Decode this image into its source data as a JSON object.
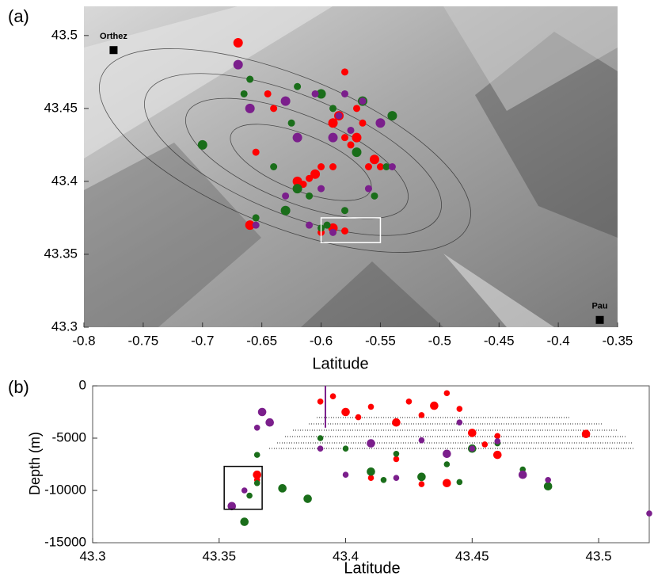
{
  "chart_data": [
    {
      "type": "scatter",
      "label": "(a)",
      "xlabel": "Latitude",
      "xlim": [
        -0.8,
        -0.35
      ],
      "ylim": [
        43.3,
        43.52
      ],
      "xticks": [
        -0.8,
        -0.75,
        -0.7,
        -0.65,
        -0.6,
        -0.55,
        -0.5,
        -0.45,
        -0.4,
        -0.35
      ],
      "yticks": [
        43.3,
        43.35,
        43.4,
        43.45,
        43.5
      ],
      "places": [
        {
          "name": "Orthez",
          "x": -0.775,
          "y": 43.49
        },
        {
          "name": "Pau",
          "x": -0.365,
          "y": 43.305
        }
      ],
      "box": {
        "x": [
          -0.6,
          -0.55
        ],
        "y": [
          43.358,
          43.375
        ]
      },
      "series": [
        {
          "color": "#ff0000",
          "x": [
            -0.67,
            -0.655,
            -0.64,
            -0.62,
            -0.615,
            -0.61,
            -0.605,
            -0.6,
            -0.59,
            -0.585,
            -0.58,
            -0.575,
            -0.57,
            -0.565,
            -0.56,
            -0.555,
            -0.55,
            -0.6,
            -0.59,
            -0.58,
            -0.645,
            -0.66,
            -0.58,
            -0.57,
            -0.59
          ],
          "y": [
            43.495,
            43.42,
            43.45,
            43.4,
            43.398,
            43.402,
            43.405,
            43.41,
            43.41,
            43.445,
            43.43,
            43.425,
            43.43,
            43.44,
            43.41,
            43.415,
            43.41,
            43.365,
            43.368,
            43.366,
            43.46,
            43.37,
            43.475,
            43.45,
            43.44
          ]
        },
        {
          "color": "#1a6e1a",
          "x": [
            -0.7,
            -0.665,
            -0.655,
            -0.63,
            -0.625,
            -0.61,
            -0.6,
            -0.595,
            -0.58,
            -0.565,
            -0.555,
            -0.545,
            -0.54,
            -0.6,
            -0.59,
            -0.57,
            -0.64,
            -0.62,
            -0.62,
            -0.66
          ],
          "y": [
            43.425,
            43.46,
            43.375,
            43.38,
            43.44,
            43.39,
            43.46,
            43.37,
            43.38,
            43.455,
            43.39,
            43.41,
            43.445,
            43.368,
            43.45,
            43.42,
            43.41,
            43.465,
            43.395,
            43.47
          ]
        },
        {
          "color": "#7b1f8c",
          "x": [
            -0.67,
            -0.655,
            -0.63,
            -0.62,
            -0.605,
            -0.6,
            -0.59,
            -0.575,
            -0.565,
            -0.55,
            -0.54,
            -0.56,
            -0.63,
            -0.61,
            -0.59,
            -0.66,
            -0.585,
            -0.58
          ],
          "y": [
            43.48,
            43.37,
            43.39,
            43.43,
            43.46,
            43.395,
            43.43,
            43.435,
            43.455,
            43.44,
            43.41,
            43.395,
            43.455,
            43.37,
            43.365,
            43.45,
            43.445,
            43.46
          ]
        }
      ]
    },
    {
      "type": "scatter",
      "label": "(b)",
      "xlabel": "Latitude",
      "ylabel": "Depth (m)",
      "xlim": [
        43.3,
        43.52
      ],
      "ylim": [
        -15000,
        0
      ],
      "xticks": [
        43.3,
        43.35,
        43.4,
        43.45,
        43.5
      ],
      "yticks": [
        0,
        -5000,
        -10000,
        -15000
      ],
      "box": {
        "x": [
          43.352,
          43.367
        ],
        "y": [
          -7700,
          -11800
        ]
      },
      "well": {
        "color": "#7b1f8c",
        "x": 43.392,
        "y": [
          0,
          -4000
        ]
      },
      "series": [
        {
          "color": "#ff0000",
          "x": [
            43.365,
            43.39,
            43.395,
            43.4,
            43.405,
            43.41,
            43.42,
            43.425,
            43.43,
            43.435,
            43.44,
            43.445,
            43.45,
            43.455,
            43.46,
            43.495,
            43.41,
            43.43,
            43.46,
            43.365,
            43.42,
            43.44
          ],
          "y": [
            -8500,
            -1500,
            -1000,
            -2500,
            -3000,
            -2000,
            -3500,
            -1500,
            -2800,
            -1900,
            -700,
            -2200,
            -4500,
            -5600,
            -4800,
            -4600,
            -8800,
            -9400,
            -6600,
            -9000,
            -7000,
            -9300
          ]
        },
        {
          "color": "#1a6e1a",
          "x": [
            43.36,
            43.362,
            43.365,
            43.375,
            43.39,
            43.4,
            43.41,
            43.415,
            43.42,
            43.43,
            43.44,
            43.445,
            43.45,
            43.46,
            43.47,
            43.48,
            43.365,
            43.37,
            43.385
          ],
          "y": [
            -13000,
            -10500,
            -9300,
            -9800,
            -5000,
            -6000,
            -8200,
            -9000,
            -6500,
            -8700,
            -7500,
            -9200,
            -6000,
            -5500,
            -8000,
            -9600,
            -6600,
            -3500,
            -10800
          ]
        },
        {
          "color": "#7b1f8c",
          "x": [
            43.355,
            43.36,
            43.365,
            43.37,
            43.39,
            43.4,
            43.41,
            43.42,
            43.43,
            43.44,
            43.45,
            43.46,
            43.47,
            43.48,
            43.52,
            43.367,
            43.445
          ],
          "y": [
            -11500,
            -10000,
            -4000,
            -3500,
            -6000,
            -8500,
            -5500,
            -8800,
            -5200,
            -6500,
            -6000,
            -5300,
            -8500,
            -9000,
            -12200,
            -2500,
            -3500
          ]
        }
      ]
    }
  ]
}
